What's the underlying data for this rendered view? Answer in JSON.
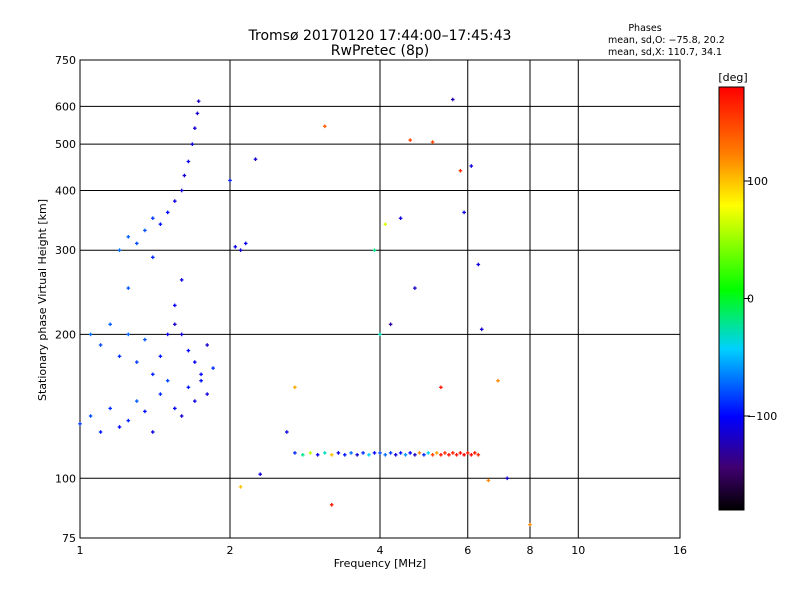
{
  "chart_data": {
    "type": "scatter",
    "title": "Tromsø 20170120 17:44:00–17:45:43",
    "subtitle": "RwPretec (8p)",
    "info": {
      "heading": "Phases",
      "line1": "mean, sd,O: −75.8, 20.2",
      "line2": "mean, sd,X: 110.7, 34.1"
    },
    "xlabel": "Frequency [MHz]",
    "ylabel": "Stationary phase Virtual Height [km]",
    "xscale": "log2",
    "yscale": "log",
    "xlim": [
      1,
      16
    ],
    "ylim": [
      75,
      750
    ],
    "x_ticks": [
      1,
      2,
      4,
      6,
      8,
      10,
      16
    ],
    "x_tick_labels": [
      "1",
      "2",
      "4",
      "6",
      "8",
      "10",
      "16"
    ],
    "y_ticks": [
      75,
      100,
      200,
      300,
      400,
      500,
      600,
      750
    ],
    "y_tick_labels": [
      "75",
      "100",
      "200",
      "300",
      "400",
      "500",
      "600",
      "750"
    ],
    "grid": true,
    "colorbar": {
      "label": "[deg]",
      "range": [
        -180,
        180
      ],
      "ticks": [
        100,
        0,
        -100
      ],
      "tick_labels": [
        "100",
        "0",
        "−100"
      ]
    },
    "series": [
      {
        "points": [
          [
            1.0,
            130,
            -85
          ],
          [
            1.05,
            135,
            -80
          ],
          [
            1.1,
            125,
            -95
          ],
          [
            1.15,
            140,
            -88
          ],
          [
            1.2,
            128,
            -100
          ],
          [
            1.25,
            132,
            -92
          ],
          [
            1.3,
            145,
            -75
          ],
          [
            1.35,
            138,
            -98
          ],
          [
            1.4,
            125,
            -110
          ],
          [
            1.45,
            150,
            -90
          ],
          [
            1.5,
            160,
            -82
          ],
          [
            1.55,
            140,
            -105
          ],
          [
            1.6,
            135,
            -115
          ],
          [
            1.65,
            155,
            -95
          ],
          [
            1.7,
            145,
            -108
          ],
          [
            1.75,
            165,
            -100
          ],
          [
            1.8,
            150,
            -112
          ],
          [
            1.85,
            170,
            -90
          ],
          [
            1.05,
            200,
            -70
          ],
          [
            1.1,
            190,
            -80
          ],
          [
            1.15,
            210,
            -75
          ],
          [
            1.2,
            180,
            -88
          ],
          [
            1.25,
            200,
            -72
          ],
          [
            1.3,
            175,
            -85
          ],
          [
            1.35,
            195,
            -78
          ],
          [
            1.4,
            165,
            -92
          ],
          [
            1.45,
            180,
            -95
          ],
          [
            1.5,
            200,
            -110
          ],
          [
            1.55,
            210,
            -118
          ],
          [
            1.6,
            200,
            -112
          ],
          [
            1.65,
            185,
            -100
          ],
          [
            1.7,
            175,
            -105
          ],
          [
            1.75,
            160,
            -98
          ],
          [
            1.8,
            190,
            -115
          ],
          [
            1.2,
            300,
            -70
          ],
          [
            1.25,
            320,
            -75
          ],
          [
            1.3,
            310,
            -80
          ],
          [
            1.35,
            330,
            -78
          ],
          [
            1.4,
            350,
            -85
          ],
          [
            1.45,
            340,
            -95
          ],
          [
            1.5,
            360,
            -100
          ],
          [
            1.55,
            380,
            -110
          ],
          [
            1.6,
            400,
            -115
          ],
          [
            1.62,
            430,
            -112
          ],
          [
            1.65,
            460,
            -108
          ],
          [
            1.68,
            500,
            -110
          ],
          [
            1.7,
            540,
            -115
          ],
          [
            1.72,
            580,
            -118
          ],
          [
            1.73,
            615,
            -120
          ],
          [
            1.25,
            250,
            -78
          ],
          [
            1.4,
            290,
            -90
          ],
          [
            1.55,
            230,
            -105
          ],
          [
            1.6,
            260,
            -110
          ],
          [
            2.05,
            305,
            -110
          ],
          [
            2.1,
            300,
            -112
          ],
          [
            2.15,
            310,
            -108
          ],
          [
            2.25,
            465,
            -115
          ],
          [
            2.0,
            420,
            -95
          ],
          [
            2.7,
            113,
            -90
          ],
          [
            2.8,
            112,
            -20
          ],
          [
            2.9,
            113,
            60
          ],
          [
            3.0,
            112,
            -105
          ],
          [
            3.1,
            113,
            -30
          ],
          [
            3.2,
            112,
            100
          ],
          [
            3.3,
            113,
            -110
          ],
          [
            3.4,
            112,
            -95
          ],
          [
            3.5,
            113,
            -70
          ],
          [
            3.6,
            112,
            -115
          ],
          [
            3.7,
            113,
            -90
          ],
          [
            3.8,
            112,
            -40
          ],
          [
            3.9,
            113,
            -100
          ],
          [
            4.0,
            113,
            -80
          ],
          [
            4.1,
            112,
            -70
          ],
          [
            4.2,
            113,
            -85
          ],
          [
            4.3,
            112,
            -110
          ],
          [
            4.4,
            113,
            -95
          ],
          [
            4.5,
            112,
            -60
          ],
          [
            4.6,
            113,
            -100
          ],
          [
            4.7,
            112,
            -120
          ],
          [
            4.8,
            113,
            120
          ],
          [
            4.9,
            112,
            -90
          ],
          [
            5.0,
            113,
            -40
          ],
          [
            5.1,
            112,
            150
          ],
          [
            5.2,
            113,
            110
          ],
          [
            5.3,
            112,
            170
          ],
          [
            5.4,
            113,
            160
          ],
          [
            5.5,
            112,
            175
          ],
          [
            5.6,
            113,
            165
          ],
          [
            5.7,
            112,
            170
          ],
          [
            5.8,
            113,
            172
          ],
          [
            5.9,
            112,
            178
          ],
          [
            6.0,
            113,
            168
          ],
          [
            6.1,
            112,
            175
          ],
          [
            6.2,
            113,
            170
          ],
          [
            6.3,
            112,
            160
          ],
          [
            2.1,
            96,
            100
          ],
          [
            2.3,
            102,
            -110
          ],
          [
            2.6,
            125,
            -110
          ],
          [
            2.7,
            155,
            110
          ],
          [
            3.2,
            88,
            170
          ],
          [
            3.1,
            545,
            140
          ],
          [
            3.9,
            300,
            -20
          ],
          [
            4.0,
            200,
            -30
          ],
          [
            4.1,
            340,
            70
          ],
          [
            4.2,
            210,
            -130
          ],
          [
            4.4,
            350,
            -110
          ],
          [
            4.6,
            510,
            150
          ],
          [
            4.7,
            250,
            -115
          ],
          [
            5.1,
            505,
            150
          ],
          [
            5.3,
            155,
            170
          ],
          [
            5.6,
            620,
            -125
          ],
          [
            5.8,
            440,
            160
          ],
          [
            5.9,
            360,
            -110
          ],
          [
            6.1,
            450,
            -110
          ],
          [
            6.3,
            280,
            -110
          ],
          [
            6.4,
            205,
            -115
          ],
          [
            6.6,
            99,
            120
          ],
          [
            6.9,
            160,
            120
          ],
          [
            7.2,
            100,
            -115
          ],
          [
            8.0,
            80,
            120
          ]
        ]
      }
    ]
  }
}
